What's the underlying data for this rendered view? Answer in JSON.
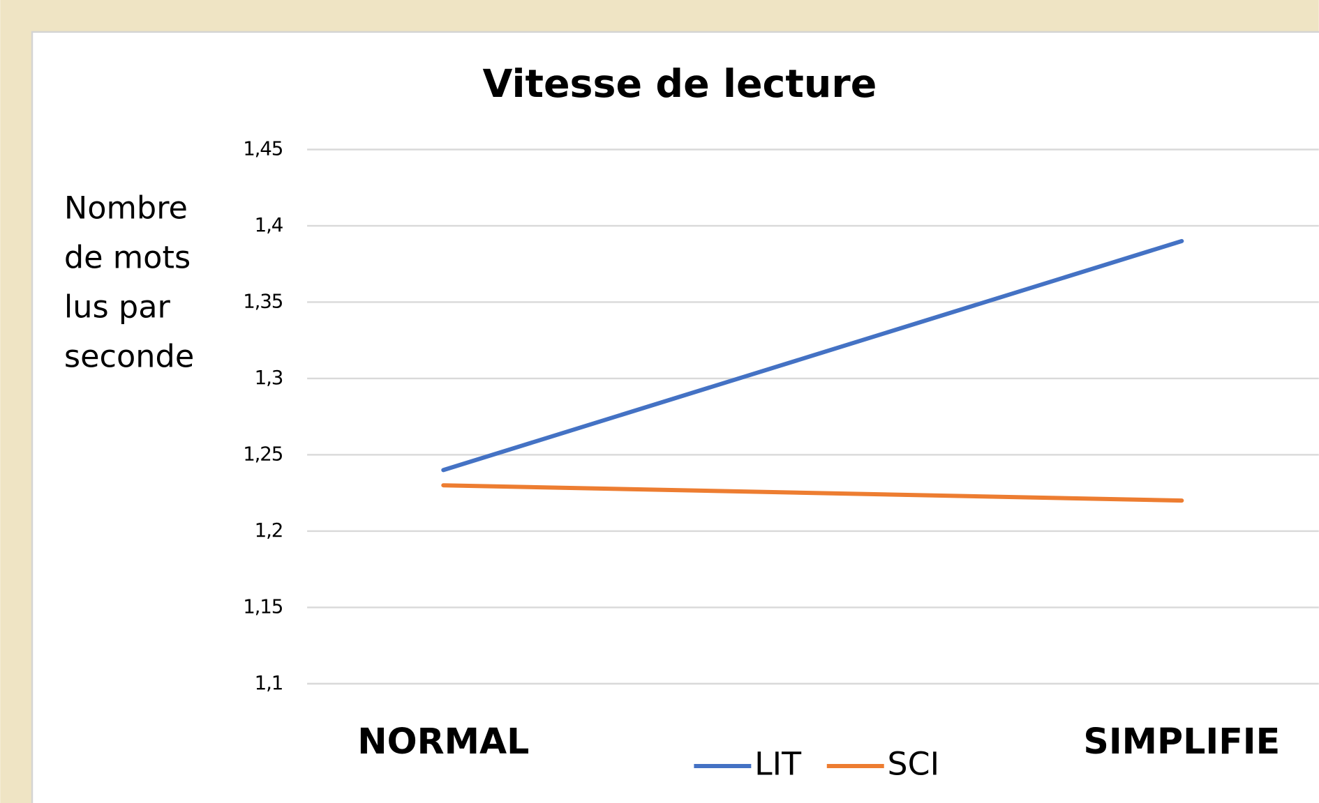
{
  "chart_data": {
    "type": "line",
    "title": "Vitesse de lecture",
    "y_label": "Nombre de mots lus par seconde",
    "categories": [
      "NORMAL",
      "SIMPLIFIE"
    ],
    "series": [
      {
        "name": "LIT",
        "color": "#4472c4",
        "values": [
          1.24,
          1.39
        ]
      },
      {
        "name": "SCI",
        "color": "#ed7d31",
        "values": [
          1.23,
          1.22
        ]
      }
    ],
    "ylim": [
      1.1,
      1.45
    ],
    "yticks": [
      {
        "value": 1.1,
        "label": "1,1"
      },
      {
        "value": 1.15,
        "label": "1,15"
      },
      {
        "value": 1.2,
        "label": "1,2"
      },
      {
        "value": 1.25,
        "label": "1,25"
      },
      {
        "value": 1.3,
        "label": "1,3"
      },
      {
        "value": 1.35,
        "label": "1,35"
      },
      {
        "value": 1.4,
        "label": "1,4"
      },
      {
        "value": 1.45,
        "label": "1,45"
      }
    ],
    "grid": true,
    "legend": "bottom"
  }
}
